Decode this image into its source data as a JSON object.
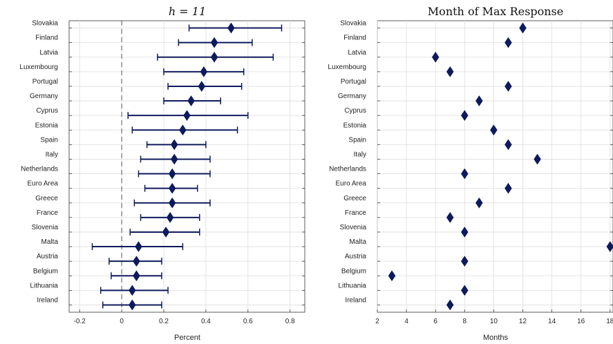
{
  "chart_data": [
    {
      "type": "errorbar",
      "title_var": "h",
      "title_eq": " = ",
      "title_val": "11",
      "xlabel": "Percent",
      "ylabel": "",
      "xlim": [
        -0.25,
        0.87
      ],
      "xticks": [
        -0.2,
        0,
        0.2,
        0.4,
        0.6,
        0.8
      ],
      "xtick_labels": [
        "-0.2",
        "0",
        "0.2",
        "0.4",
        "0.6",
        "0.8"
      ],
      "zero_line": true,
      "grid": true,
      "marker": "diamond",
      "color": "#0d1a5c",
      "categories": [
        "Slovakia",
        "Finland",
        "Latvia",
        "Luxembourg",
        "Portugal",
        "Germany",
        "Cyprus",
        "Estonia",
        "Spain",
        "Italy",
        "Netherlands",
        "Euro Area",
        "Greece",
        "France",
        "Slovenia",
        "Malta",
        "Austria",
        "Belgium",
        "Lithuania",
        "Ireland"
      ],
      "values": [
        0.52,
        0.44,
        0.44,
        0.39,
        0.38,
        0.33,
        0.31,
        0.29,
        0.25,
        0.25,
        0.24,
        0.24,
        0.24,
        0.23,
        0.21,
        0.08,
        0.07,
        0.07,
        0.05,
        0.05
      ],
      "lower": [
        0.32,
        0.27,
        0.17,
        0.2,
        0.22,
        0.2,
        0.03,
        0.05,
        0.12,
        0.09,
        0.08,
        0.11,
        0.06,
        0.09,
        0.04,
        -0.14,
        -0.06,
        -0.05,
        -0.1,
        -0.09
      ],
      "upper": [
        0.76,
        0.62,
        0.72,
        0.58,
        0.57,
        0.47,
        0.6,
        0.55,
        0.4,
        0.42,
        0.42,
        0.36,
        0.42,
        0.37,
        0.37,
        0.29,
        0.19,
        0.19,
        0.22,
        0.19
      ]
    },
    {
      "type": "dot",
      "title": "Month of Max Response",
      "xlabel": "Months",
      "ylabel": "",
      "xlim": [
        2,
        18.2
      ],
      "xticks": [
        2,
        4,
        6,
        8,
        10,
        12,
        14,
        16,
        18
      ],
      "xtick_labels": [
        "2",
        "4",
        "6",
        "8",
        "10",
        "12",
        "14",
        "16",
        "18"
      ],
      "grid": true,
      "marker": "diamond",
      "color": "#0d1a5c",
      "categories": [
        "Slovakia",
        "Finland",
        "Latvia",
        "Luxembourg",
        "Portugal",
        "Germany",
        "Cyprus",
        "Estonia",
        "Spain",
        "Italy",
        "Netherlands",
        "Euro Area",
        "Greece",
        "France",
        "Slovenia",
        "Malta",
        "Austria",
        "Belgium",
        "Lithuania",
        "Ireland"
      ],
      "values": [
        12,
        11,
        6,
        7,
        11,
        9,
        8,
        10,
        11,
        13,
        8,
        11,
        9,
        7,
        8,
        18,
        8,
        3,
        8,
        7
      ]
    }
  ]
}
